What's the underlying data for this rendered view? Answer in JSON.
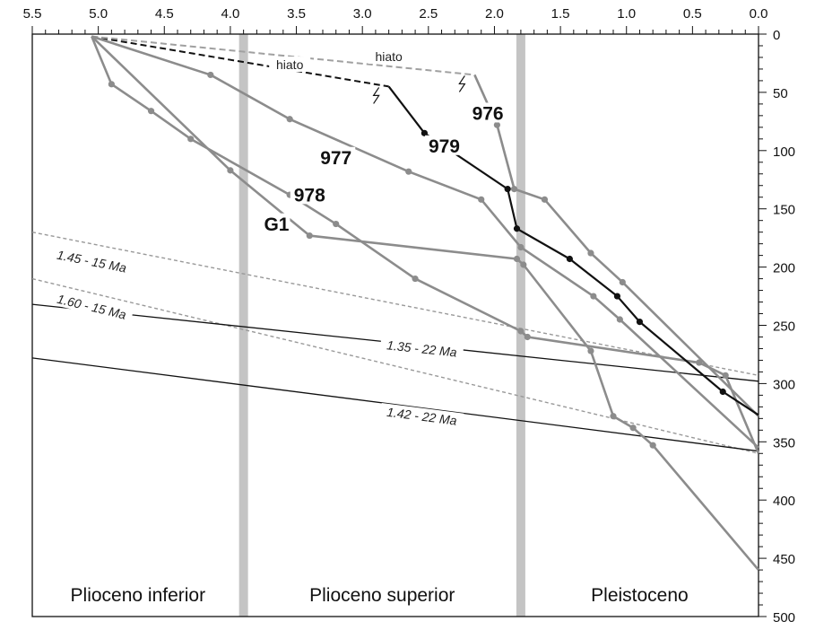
{
  "chart_data": {
    "type": "line",
    "x_axis": {
      "range": [
        5.5,
        0.0
      ],
      "ticks": [
        "5.5",
        "5.0",
        "4.5",
        "4.0",
        "3.5",
        "3.0",
        "2.5",
        "2.0",
        "1.5",
        "1.0",
        "0.5",
        "0.0"
      ]
    },
    "y_axis": {
      "range": [
        0,
        500
      ],
      "inverted": true,
      "ticks": [
        "0",
        "50",
        "100",
        "150",
        "200",
        "250",
        "300",
        "350",
        "400",
        "450",
        "500"
      ]
    },
    "epoch_boundaries": [
      3.9,
      1.8
    ],
    "epochs": [
      {
        "label": "Plioceno inferior",
        "x_center": 4.7
      },
      {
        "label": "Plioceno superior",
        "x_center": 2.85
      },
      {
        "label": "Pleistoceno",
        "x_center": 0.9
      }
    ],
    "colors": {
      "series_gray": "#8c8c8c",
      "series_black": "#111111",
      "boundary": "#c4c4c4",
      "hiato_gray": "#a0a0a0"
    },
    "series": [
      {
        "name": "976",
        "color": "#8c8c8c",
        "label_at": [
          2.05,
          72
        ],
        "points": [
          [
            2.15,
            35
          ],
          [
            1.98,
            78
          ],
          [
            1.85,
            133
          ],
          [
            1.62,
            142
          ],
          [
            1.27,
            188
          ],
          [
            1.03,
            213
          ],
          [
            0.0,
            328
          ]
        ]
      },
      {
        "name": "977",
        "color": "#8c8c8c",
        "label_at": [
          3.2,
          110
        ],
        "points": [
          [
            5.05,
            2
          ],
          [
            4.15,
            35
          ],
          [
            3.55,
            73
          ],
          [
            2.65,
            118
          ],
          [
            2.1,
            142
          ],
          [
            1.8,
            183
          ],
          [
            1.25,
            225
          ],
          [
            1.05,
            245
          ],
          [
            0.0,
            355
          ]
        ]
      },
      {
        "name": "978",
        "color": "#8c8c8c",
        "label_at": [
          3.4,
          142
        ],
        "points": [
          [
            5.05,
            2
          ],
          [
            4.9,
            43
          ],
          [
            4.6,
            66
          ],
          [
            4.3,
            90
          ],
          [
            3.55,
            138
          ],
          [
            3.2,
            163
          ],
          [
            2.6,
            210
          ],
          [
            1.8,
            255
          ],
          [
            1.75,
            260
          ],
          [
            0.45,
            282
          ],
          [
            0.25,
            293
          ],
          [
            0.0,
            360
          ]
        ]
      },
      {
        "name": "G1",
        "color": "#8c8c8c",
        "label_at": [
          3.65,
          167
        ],
        "points": [
          [
            5.05,
            2
          ],
          [
            4.0,
            117
          ],
          [
            3.4,
            173
          ],
          [
            1.83,
            193
          ],
          [
            1.78,
            198
          ],
          [
            1.27,
            272
          ],
          [
            1.1,
            328
          ],
          [
            0.95,
            338
          ],
          [
            0.8,
            353
          ],
          [
            0.0,
            460
          ]
        ]
      },
      {
        "name": "979",
        "color": "#111111",
        "label_at": [
          2.38,
          100
        ],
        "points": [
          [
            2.8,
            45
          ],
          [
            2.53,
            85
          ],
          [
            1.9,
            133
          ],
          [
            1.83,
            167
          ],
          [
            1.43,
            193
          ],
          [
            1.07,
            225
          ],
          [
            0.9,
            247
          ],
          [
            0.27,
            307
          ],
          [
            0.0,
            327
          ]
        ]
      }
    ],
    "hiatus": [
      {
        "label": "hiato",
        "color": "#111111",
        "dashed": true,
        "from": [
          5.05,
          2
        ],
        "to": [
          2.8,
          45
        ],
        "label_at": [
          3.55,
          27
        ]
      },
      {
        "label": "hiato",
        "color": "#a0a0a0",
        "dashed": true,
        "from": [
          5.05,
          2
        ],
        "to": [
          2.15,
          35
        ],
        "label_at": [
          2.8,
          20
        ]
      }
    ],
    "isochrons": [
      {
        "label": "1.45 - 15 Ma",
        "style": "dotted",
        "color": "#999999",
        "from": [
          5.5,
          170
        ],
        "to": [
          0.0,
          293
        ],
        "label_at": [
          5.05,
          195
        ]
      },
      {
        "label": "1.60 - 15 Ma",
        "style": "dotted",
        "color": "#999999",
        "from": [
          5.5,
          210
        ],
        "to": [
          0.0,
          360
        ],
        "label_at": [
          5.05,
          234
        ]
      },
      {
        "label": "1.35 - 22 Ma",
        "style": "solid",
        "color": "#111111",
        "from": [
          5.5,
          232
        ],
        "to": [
          0.0,
          298
        ],
        "label_at": [
          2.55,
          270
        ]
      },
      {
        "label": "1.42 - 22 Ma",
        "style": "solid",
        "color": "#111111",
        "from": [
          5.5,
          278
        ],
        "to": [
          0.0,
          358
        ],
        "label_at": [
          2.55,
          328
        ]
      }
    ]
  }
}
